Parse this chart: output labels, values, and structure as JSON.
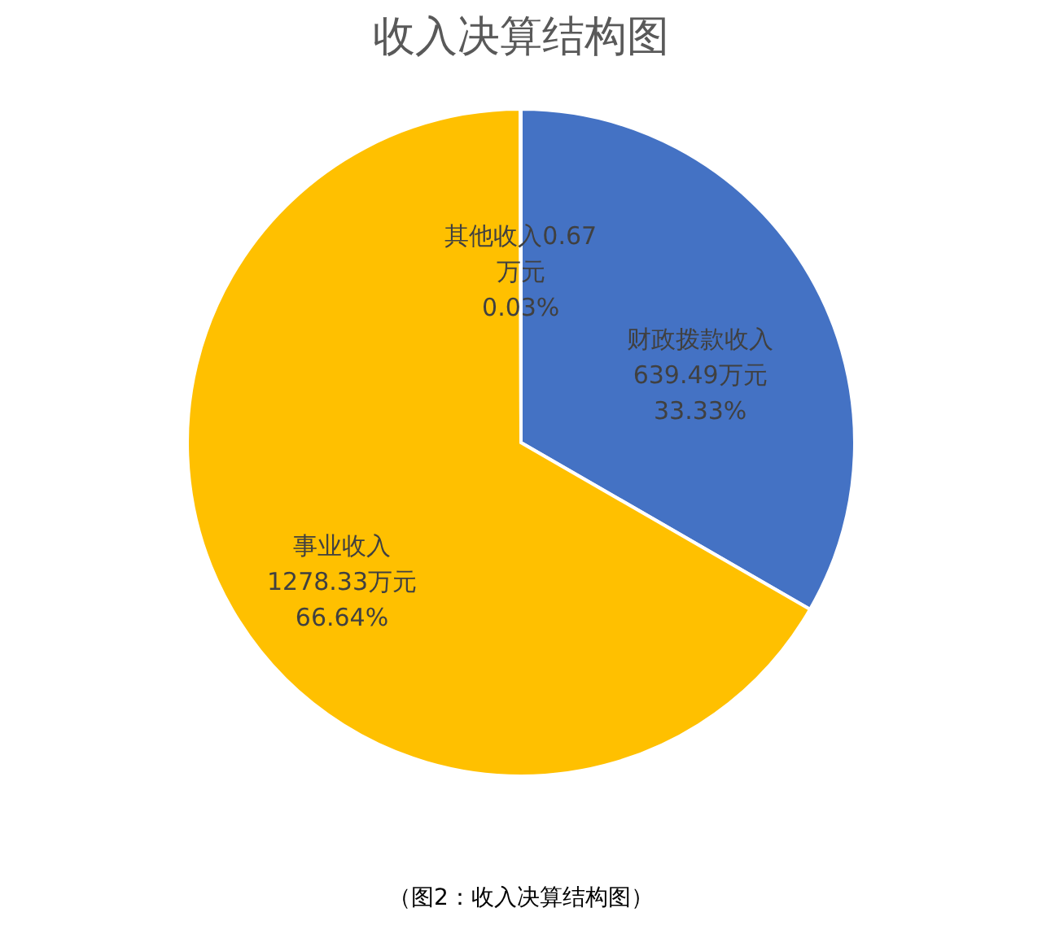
{
  "chart_data": {
    "type": "pie",
    "title": "收入决算结构图",
    "categories": [
      "财政拨款收入",
      "事业收入",
      "其他收入"
    ],
    "values": [
      639.49,
      1278.33,
      0.67
    ],
    "colors": [
      "#4472c4",
      "#ffc000",
      "#a5a5a5"
    ],
    "value_labels": [
      "639.49万元\n33.33%",
      "1278.33万元\n66.64%",
      "0.67\n万元\n0.03%"
    ],
    "annotations": [
      "（图2：收入决算结构图）"
    ]
  }
}
